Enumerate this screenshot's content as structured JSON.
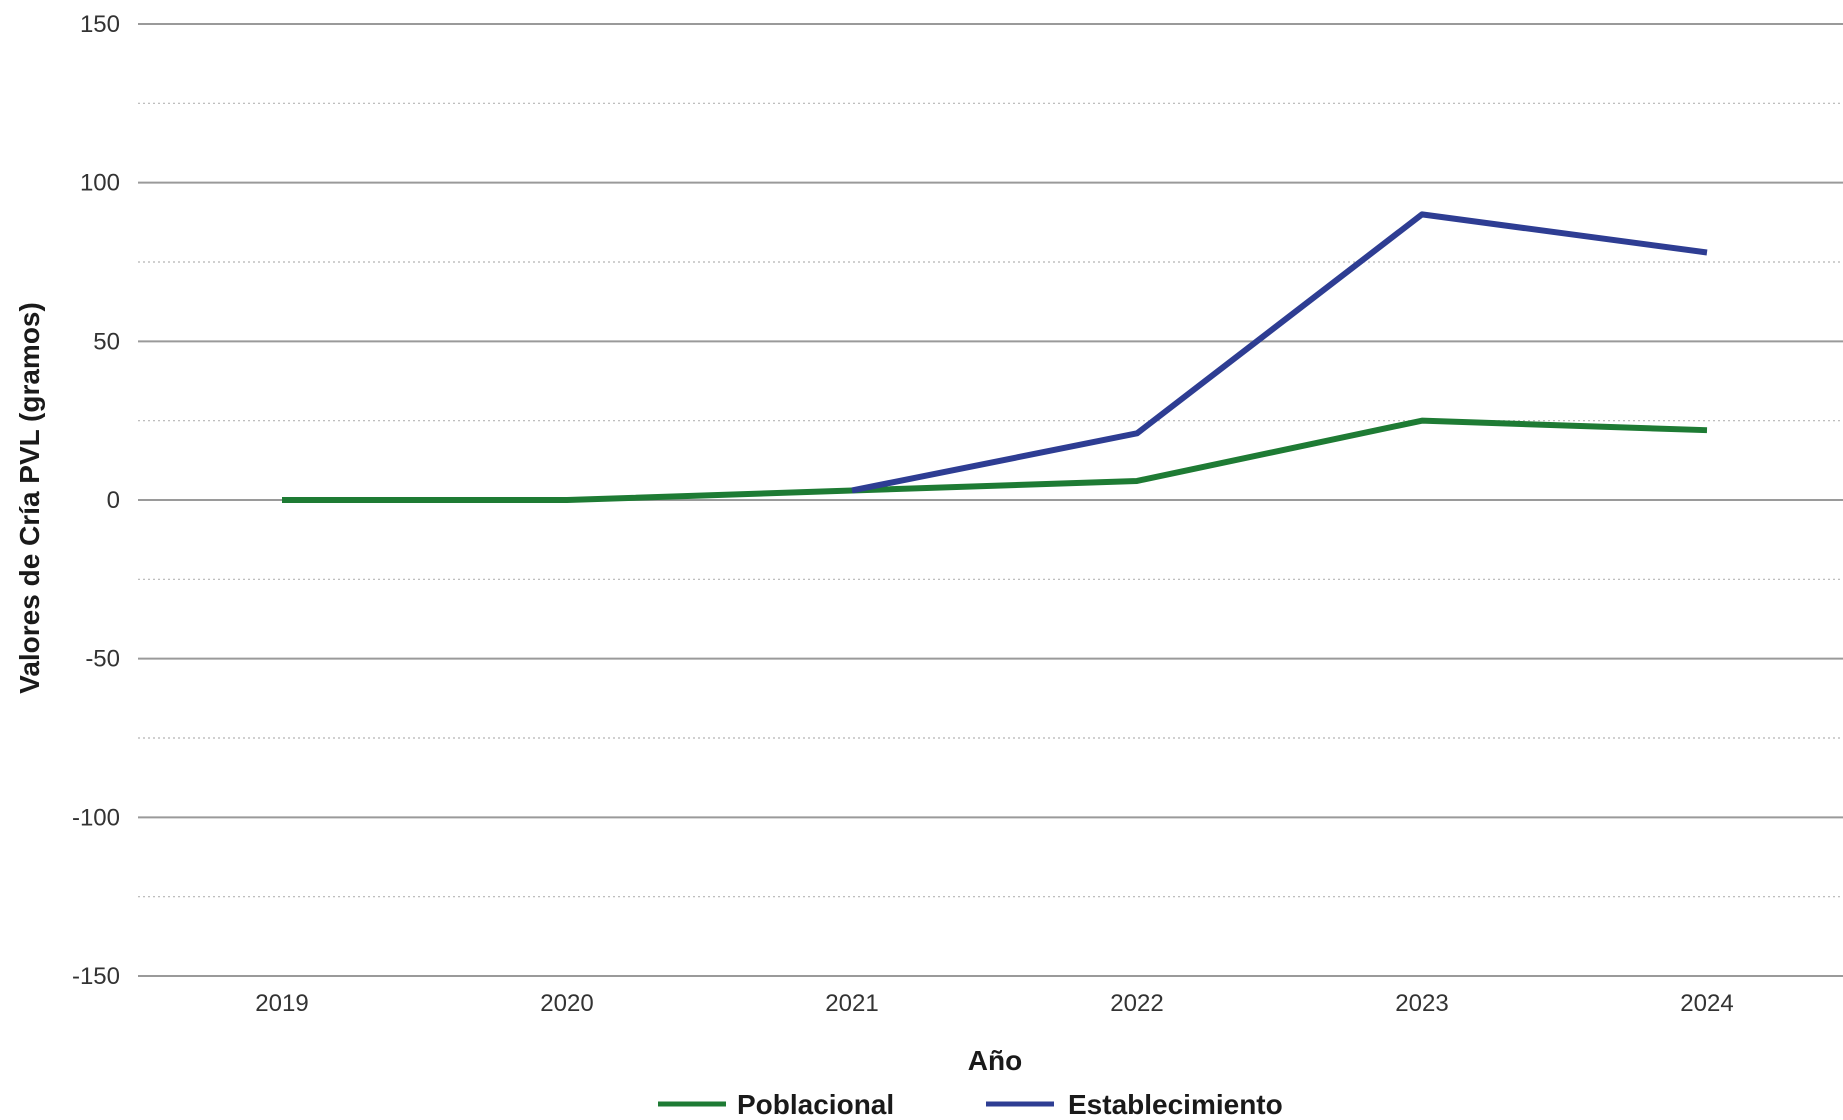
{
  "chart_data": {
    "type": "line",
    "title": "",
    "xlabel": "Año",
    "ylabel": "Valores de Cría PVL (gramos)",
    "x": [
      "2019",
      "2020",
      "2021",
      "2022",
      "2023",
      "2024"
    ],
    "ylim": [
      -150,
      150
    ],
    "yticks": [
      150,
      100,
      50,
      0,
      -50,
      -100,
      -150
    ],
    "grid": true,
    "legend_position": "bottom-center",
    "series": [
      {
        "name": "Poblacional",
        "color": "#1e7b34",
        "values": [
          0,
          0,
          3,
          6,
          25,
          22
        ]
      },
      {
        "name": "Establecimiento",
        "color": "#2e3d93",
        "values": [
          null,
          null,
          3,
          21,
          90,
          78
        ]
      }
    ]
  }
}
